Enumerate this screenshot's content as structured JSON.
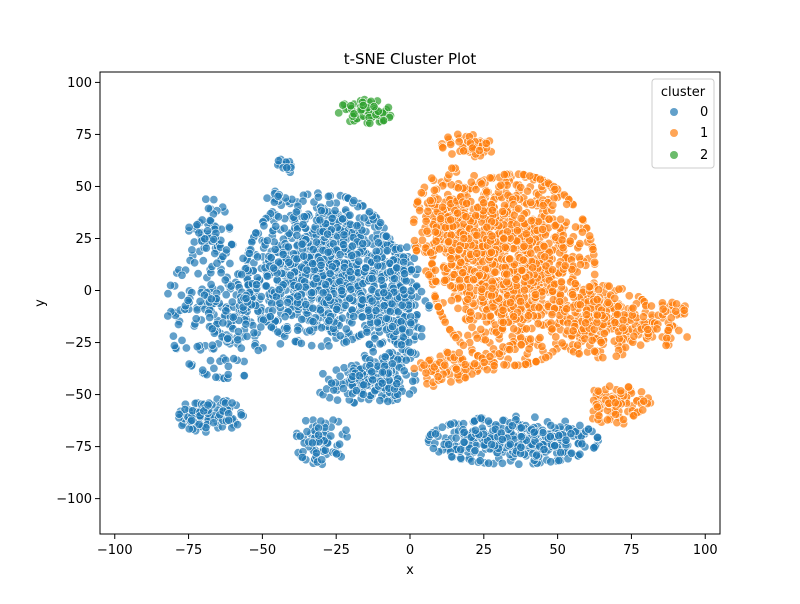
{
  "chart_data": {
    "type": "scatter",
    "title": "t-SNE Cluster Plot",
    "xlabel": "x",
    "ylabel": "y",
    "xlim": [
      -105,
      105
    ],
    "ylim": [
      -117,
      105
    ],
    "xticks": [
      -100,
      -75,
      -50,
      -25,
      0,
      25,
      50,
      75,
      100
    ],
    "yticks": [
      -100,
      -75,
      -50,
      -25,
      0,
      25,
      50,
      75,
      100
    ],
    "grid": false,
    "legend": {
      "title": "cluster",
      "position": "top-right",
      "entries": [
        "0",
        "1",
        "2"
      ]
    },
    "series": [
      {
        "name": "0",
        "color": "#1f77b4",
        "regions": [
          {
            "x": -30,
            "y": 10,
            "rx": 22,
            "ry": 32,
            "n": 900
          },
          {
            "x": -5,
            "y": -5,
            "rx": 10,
            "ry": 28,
            "n": 300
          },
          {
            "x": -62,
            "y": -10,
            "rx": 18,
            "ry": 28,
            "n": 250
          },
          {
            "x": -68,
            "y": 28,
            "rx": 6,
            "ry": 14,
            "n": 60
          },
          {
            "x": -68,
            "y": -60,
            "rx": 10,
            "ry": 7,
            "n": 120
          },
          {
            "x": 35,
            "y": -72,
            "rx": 25,
            "ry": 10,
            "n": 350
          },
          {
            "x": -30,
            "y": -72,
            "rx": 8,
            "ry": 10,
            "n": 70
          },
          {
            "x": -15,
            "y": -45,
            "rx": 15,
            "ry": 8,
            "n": 120
          },
          {
            "x": -42,
            "y": 60,
            "rx": 3,
            "ry": 3,
            "n": 15
          },
          {
            "x": -45,
            "y": 45,
            "rx": 3,
            "ry": 3,
            "n": 12
          },
          {
            "x": -10,
            "y": -40,
            "rx": 10,
            "ry": 10,
            "n": 80
          }
        ]
      },
      {
        "name": "1",
        "color": "#ff7f0e",
        "regions": [
          {
            "x": 35,
            "y": 10,
            "rx": 24,
            "ry": 40,
            "n": 1100
          },
          {
            "x": 15,
            "y": 30,
            "rx": 12,
            "ry": 25,
            "n": 300
          },
          {
            "x": 65,
            "y": -15,
            "rx": 15,
            "ry": 15,
            "n": 250
          },
          {
            "x": 70,
            "y": -55,
            "rx": 10,
            "ry": 8,
            "n": 90
          },
          {
            "x": 20,
            "y": 70,
            "rx": 8,
            "ry": 5,
            "n": 50
          },
          {
            "x": 15,
            "y": -38,
            "rx": 12,
            "ry": 8,
            "n": 80
          },
          {
            "x": 85,
            "y": -15,
            "rx": 10,
            "ry": 10,
            "n": 60
          }
        ]
      },
      {
        "name": "2",
        "color": "#2ca02c",
        "regions": [
          {
            "x": -15,
            "y": 86,
            "rx": 8,
            "ry": 5,
            "n": 70
          }
        ]
      }
    ]
  }
}
